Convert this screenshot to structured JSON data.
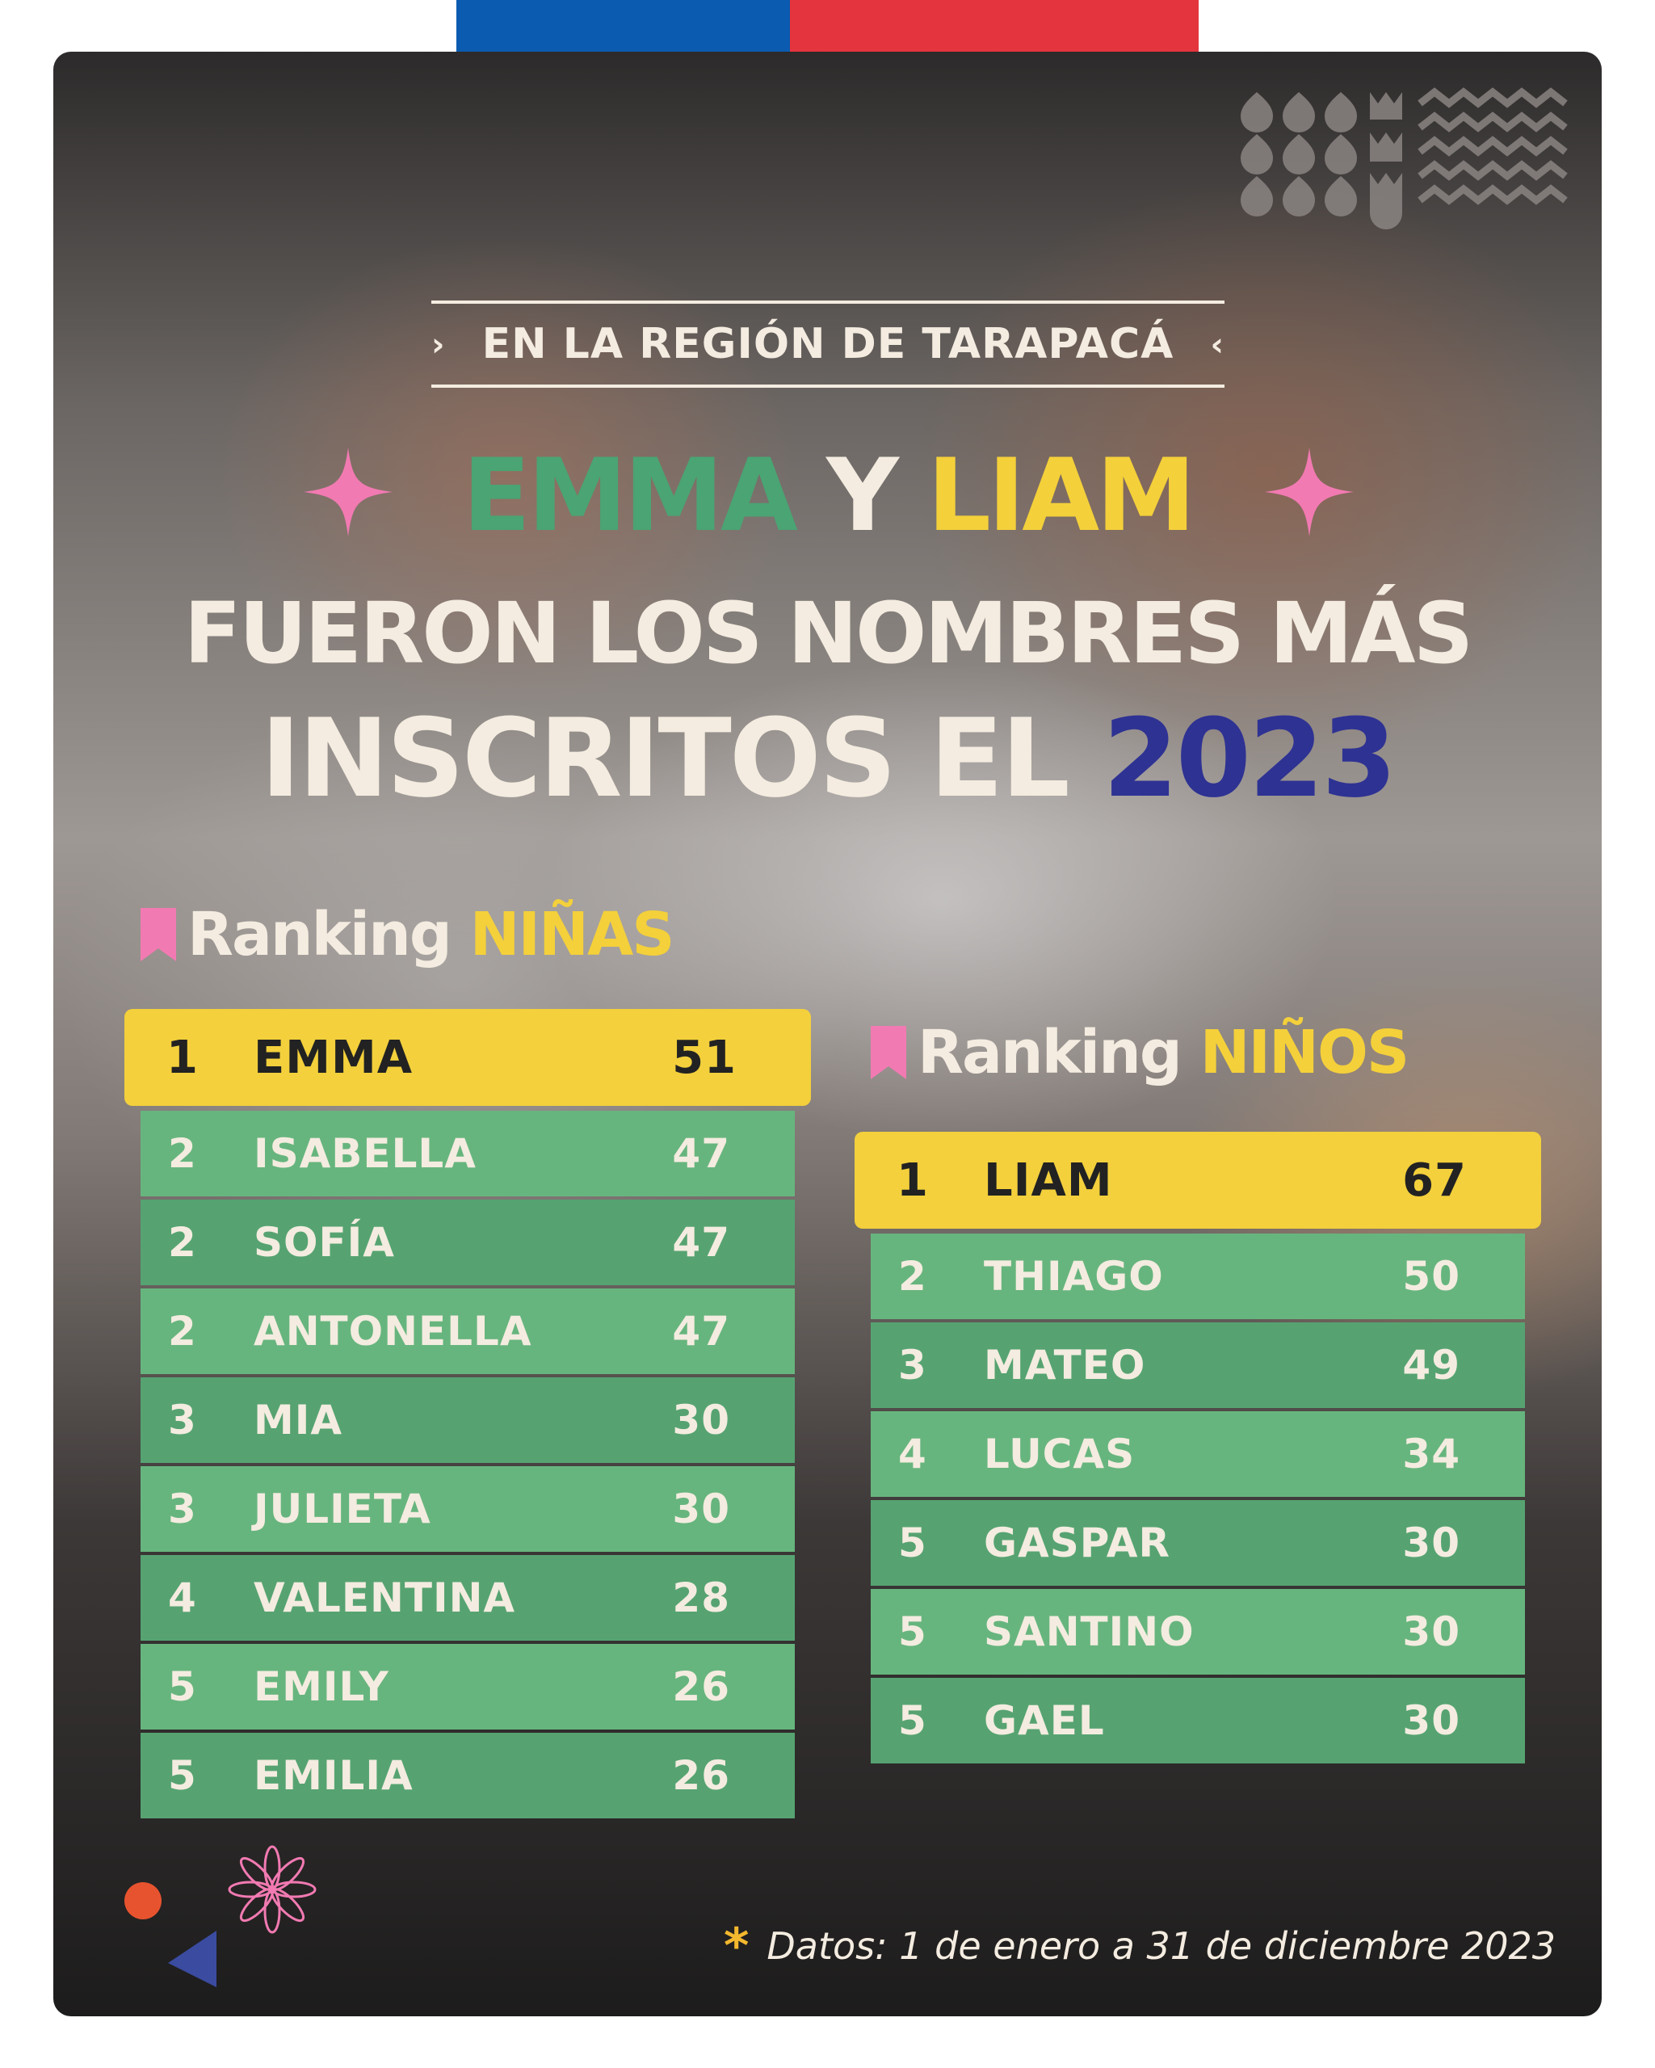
{
  "header": {
    "region": "EN LA REGIÓN DE  TARAPACÁ",
    "name_girl": "EMMA",
    "connector": "Y",
    "name_boy": "LIAM",
    "line2": "FUERON LOS NOMBRES MÁS",
    "line3_prefix": "INSCRITOS EL ",
    "year": "2023"
  },
  "girls": {
    "title_prefix": "Ranking ",
    "title_accent": "NIÑAS",
    "rows": [
      {
        "pos": "1",
        "name": "EMMA",
        "count": "51"
      },
      {
        "pos": "2",
        "name": "ISABELLA",
        "count": "47"
      },
      {
        "pos": "2",
        "name": "SOFÍA",
        "count": "47"
      },
      {
        "pos": "2",
        "name": "ANTONELLA",
        "count": "47"
      },
      {
        "pos": "3",
        "name": "MIA",
        "count": "30"
      },
      {
        "pos": "3",
        "name": "JULIETA",
        "count": "30"
      },
      {
        "pos": "4",
        "name": "VALENTINA",
        "count": "28"
      },
      {
        "pos": "5",
        "name": "EMILY",
        "count": "26"
      },
      {
        "pos": "5",
        "name": "EMILIA",
        "count": "26"
      }
    ]
  },
  "boys": {
    "title_prefix": "Ranking ",
    "title_accent": "NIÑOS",
    "rows": [
      {
        "pos": "1",
        "name": "LIAM",
        "count": "67"
      },
      {
        "pos": "2",
        "name": "THIAGO",
        "count": "50"
      },
      {
        "pos": "3",
        "name": "MATEO",
        "count": "49"
      },
      {
        "pos": "4",
        "name": "LUCAS",
        "count": "34"
      },
      {
        "pos": "5",
        "name": "GASPAR",
        "count": "30"
      },
      {
        "pos": "5",
        "name": "SANTINO",
        "count": "30"
      },
      {
        "pos": "5",
        "name": "GAEL",
        "count": "30"
      }
    ]
  },
  "footnote": {
    "star": "*",
    "text": "Datos: 1 de enero a 31 de diciembre 2023"
  },
  "colors": {
    "flag_blue": "#0b5bb0",
    "flag_red": "#e4343e",
    "highlight_yellow": "#f3d03c",
    "row_green_light": "#67b57e",
    "row_green_dark": "#56a371",
    "accent_pink": "#f27ab2",
    "year_blue": "#2e3293"
  },
  "icons": [
    "sparkle-icon",
    "bookmark-icon",
    "flower-icon",
    "triangle-icon",
    "circle-icon",
    "brand-pattern-icon"
  ]
}
